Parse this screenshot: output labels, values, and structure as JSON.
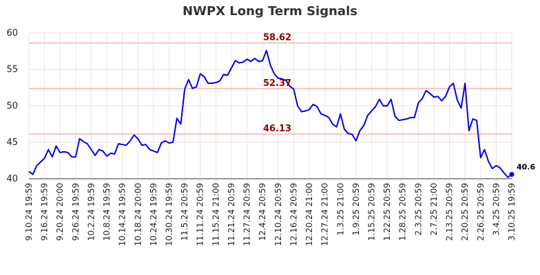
{
  "chart_data": {
    "type": "line",
    "title": "NWPX Long Term Signals",
    "xlabel": "",
    "ylabel": "",
    "ylim": [
      40,
      60
    ],
    "yticks": [
      40,
      45,
      50,
      55,
      60
    ],
    "grid": true,
    "legend": "none",
    "colors": {
      "line": "#0000dd",
      "level_line": "#ffc0c0",
      "level_label": "#8b0000",
      "grid": "#e6e6e6",
      "last_point": "#0000dd"
    },
    "x_tick_labels": [
      "9.10.24 19:59",
      "9.16.24 19:59",
      "9.20.24 20:00",
      "9.26.24 19:59",
      "10.2.24 19:59",
      "10.8.24 19:59",
      "10.14.24 19:59",
      "10.18.24 20:00",
      "10.24.24 19:59",
      "10.30.24 19:59",
      "11.5.24 20:59",
      "11.11.24 20:59",
      "11.15.24 21:00",
      "11.21.24 20:59",
      "11.27.24 20:59",
      "12.4.24 20:59",
      "12.10.24 20:59",
      "12.16.24 20:59",
      "12.20.24 21:00",
      "12.27.24 21:00",
      "1.3.25 21:00",
      "1.9.25 20:59",
      "1.15.25 20:59",
      "1.22.25 20:59",
      "1.28.25 20:59",
      "2.3.25 20:59",
      "2.7.25 21:00",
      "2.13.25 20:59",
      "2.20.25 20:59",
      "2.26.25 20:59",
      "3.4.25 20:59",
      "3.10.25 19:59"
    ],
    "levels": [
      {
        "value": 58.62,
        "label": "58.62"
      },
      {
        "value": 52.37,
        "label": "52.37"
      },
      {
        "value": 46.13,
        "label": "46.13"
      }
    ],
    "last_value_label": "40.6",
    "series": [
      {
        "values": [
          41.0,
          40.6,
          41.8,
          42.3,
          42.8,
          44.0,
          43.0,
          44.5,
          43.6,
          43.7,
          43.6,
          43.0,
          43.0,
          45.5,
          45.1,
          44.8,
          44.0,
          43.2,
          44.0,
          43.8,
          43.1,
          43.5,
          43.4,
          44.8,
          44.7,
          44.6,
          45.2,
          46.0,
          45.5,
          44.6,
          44.7,
          44.0,
          43.8,
          43.6,
          44.9,
          45.2,
          44.9,
          45.0,
          48.3,
          47.5,
          52.3,
          53.6,
          52.4,
          52.6,
          54.4,
          54.0,
          53.1,
          53.1,
          53.2,
          53.4,
          54.3,
          54.2,
          55.2,
          56.2,
          55.9,
          56.0,
          56.4,
          56.1,
          56.5,
          56.1,
          56.2,
          57.6,
          55.6,
          54.4,
          53.8,
          53.7,
          53.5,
          52.7,
          52.3,
          50.0,
          49.2,
          49.3,
          49.5,
          50.2,
          49.9,
          48.9,
          48.7,
          48.4,
          47.5,
          47.1,
          48.9,
          46.8,
          46.2,
          46.1,
          45.2,
          46.6,
          47.3,
          48.7,
          49.3,
          49.9,
          50.9,
          50.0,
          50.0,
          50.9,
          48.6,
          48.0,
          48.1,
          48.2,
          48.4,
          48.4,
          50.4,
          51.0,
          52.1,
          51.7,
          51.2,
          51.3,
          50.7,
          51.3,
          52.6,
          53.1,
          50.8,
          49.7,
          53.1,
          46.6,
          48.2,
          48.0,
          42.9,
          44.0,
          42.4,
          41.4,
          41.8,
          41.5,
          40.8,
          40.2,
          40.6
        ]
      }
    ]
  }
}
